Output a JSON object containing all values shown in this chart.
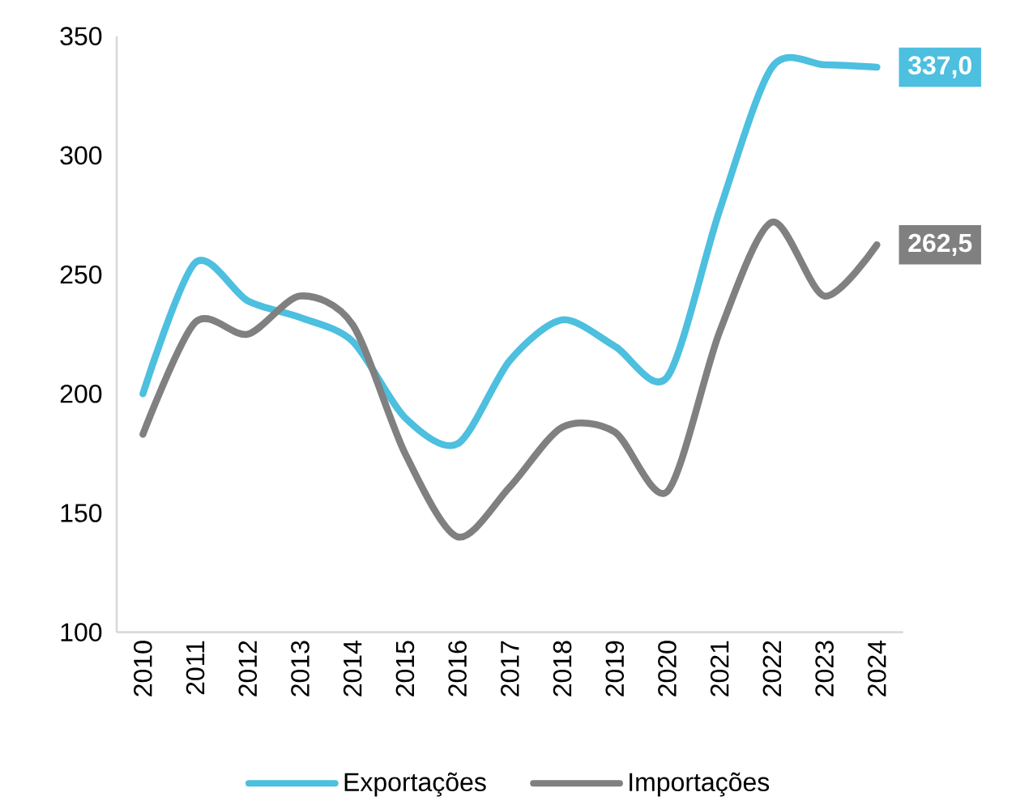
{
  "chart_data": {
    "type": "line",
    "categories": [
      "2010",
      "2011",
      "2012",
      "2013",
      "2014",
      "2015",
      "2016",
      "2017",
      "2018",
      "2019",
      "2020",
      "2021",
      "2022",
      "2023",
      "2024"
    ],
    "series": [
      {
        "name": "Exportações",
        "color": "#4dbfdf",
        "values": [
          200,
          255,
          239,
          232,
          222,
          190,
          179,
          214,
          231,
          220,
          207,
          277,
          337,
          338,
          337.0
        ],
        "value_labels": [
          null,
          null,
          null,
          null,
          null,
          null,
          null,
          null,
          null,
          null,
          null,
          null,
          null,
          null,
          "337,0"
        ]
      },
      {
        "name": "Importações",
        "color": "#808080",
        "values": [
          183,
          230,
          225,
          241,
          229,
          175,
          140,
          161,
          186,
          184,
          159,
          226,
          272,
          241,
          262.5
        ],
        "value_labels": [
          null,
          null,
          null,
          null,
          null,
          null,
          null,
          null,
          null,
          null,
          null,
          null,
          null,
          null,
          "262,5"
        ]
      }
    ],
    "ylim": [
      100,
      350
    ],
    "yticks": [
      100,
      150,
      200,
      250,
      300,
      350
    ],
    "legend": "bottom",
    "line_style": "solid",
    "marker": "none"
  }
}
